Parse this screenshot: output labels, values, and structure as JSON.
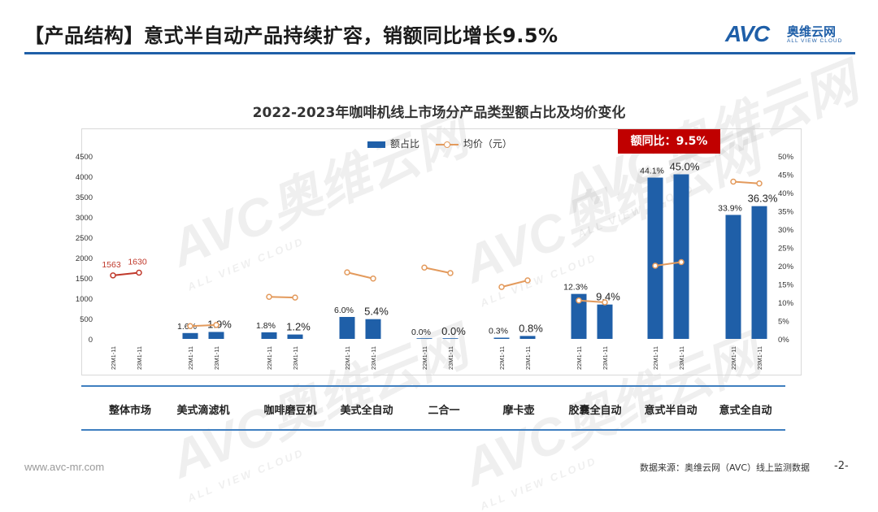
{
  "header": {
    "title": "【产品结构】意式半自动产品持续扩容，销额同比增长9.5%",
    "logo_text": "AVC",
    "logo_cn": "奥维云网",
    "logo_en": "ALL VIEW CLOUD"
  },
  "watermark": {
    "text": "AVC奥维云网",
    "sub": "ALL VIEW CLOUD"
  },
  "callout": "额同比：9.5%",
  "footer": {
    "url": "www.avc-mr.com",
    "source": "数据来源：奥维云网（AVC）线上监测数据",
    "page": "-2-"
  },
  "colors": {
    "bar": "#1f5fa8",
    "line": "#e39a5c",
    "first_line": "#c0392b",
    "accent": "#c00000",
    "rule": "#3f7fc0"
  },
  "chart_data": {
    "type": "bar",
    "title": "2022-2023年咖啡机线上市场分产品类型额占比及均价变化",
    "legend": [
      "额占比",
      "均价（元）"
    ],
    "legend_placement": "top-center",
    "categories": [
      "整体市场",
      "美式滴滤机",
      "咖啡磨豆机",
      "美式全自动",
      "二合一",
      "摩卡壶",
      "胶囊全自动",
      "意式半自动",
      "意式全自动"
    ],
    "periods": [
      "22M1-11",
      "23M1-11"
    ],
    "left_axis": {
      "ylim": [
        0,
        4500
      ],
      "ticks": [
        0,
        500,
        1000,
        1500,
        2000,
        2500,
        3000,
        3500,
        4000,
        4500
      ]
    },
    "right_axis": {
      "ylim": [
        0,
        50
      ],
      "ticks": [
        "0%",
        "5%",
        "10%",
        "15%",
        "20%",
        "25%",
        "30%",
        "35%",
        "40%",
        "45%",
        "50%"
      ]
    },
    "series": [
      {
        "name": "额占比",
        "kind": "bar",
        "values": [
          [
            null,
            null
          ],
          [
            1.6,
            1.9
          ],
          [
            1.8,
            1.2
          ],
          [
            6.0,
            5.4
          ],
          [
            0.0,
            0.0
          ],
          [
            0.3,
            0.8
          ],
          [
            12.3,
            9.4
          ],
          [
            44.1,
            45.0
          ],
          [
            33.9,
            36.3
          ]
        ],
        "labels": [
          [
            "",
            ""
          ],
          [
            "1.6%",
            "1.9%"
          ],
          [
            "1.8%",
            "1.2%"
          ],
          [
            "6.0%",
            "5.4%"
          ],
          [
            "0.0%",
            "0.0%"
          ],
          [
            "0.3%",
            "0.8%"
          ],
          [
            "12.3%",
            "9.4%"
          ],
          [
            "44.1%",
            "45.0%"
          ],
          [
            "33.9%",
            "36.3%"
          ]
        ]
      },
      {
        "name": "均价（元）",
        "kind": "line",
        "values": [
          [
            1563,
            1630
          ],
          [
            3.5,
            3.8
          ],
          [
            11.5,
            11.3
          ],
          [
            18.2,
            16.5
          ],
          [
            19.5,
            18.0
          ],
          [
            14.2,
            16.0
          ],
          [
            10.5,
            10.0
          ],
          [
            20.0,
            21.0
          ],
          [
            43.0,
            42.5
          ]
        ],
        "value_axis": [
          "left",
          "right",
          "right",
          "right",
          "right",
          "right",
          "right",
          "right",
          "right"
        ],
        "labels": [
          [
            "1563",
            "1630"
          ],
          [
            "",
            ""
          ],
          [
            "",
            ""
          ],
          [
            "",
            ""
          ],
          [
            "",
            ""
          ],
          [
            "",
            ""
          ],
          [
            "",
            ""
          ],
          [
            "",
            ""
          ],
          [
            "",
            ""
          ]
        ]
      }
    ]
  }
}
